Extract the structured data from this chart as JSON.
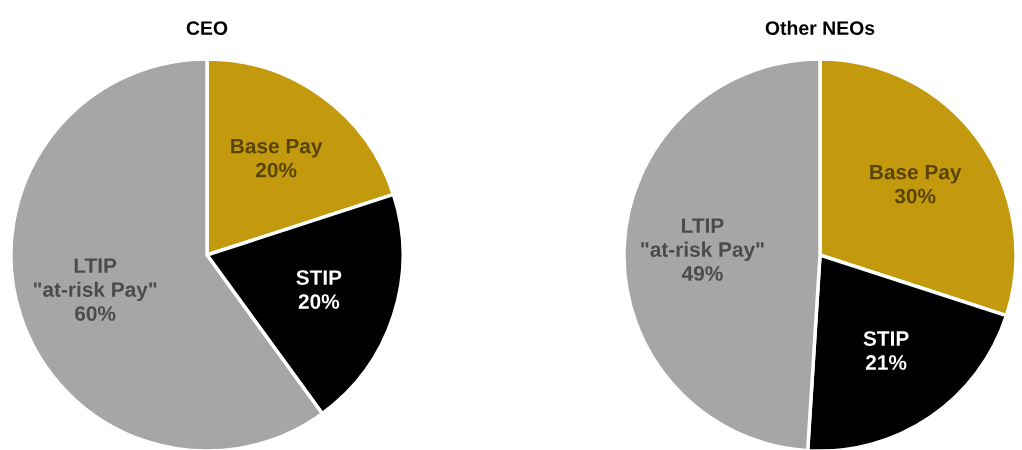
{
  "chart_data": [
    {
      "type": "pie",
      "title": "CEO",
      "categories": [
        "Base Pay",
        "STIP",
        "LTIP\n\"at-risk Pay\""
      ],
      "values": [
        20,
        20,
        60
      ],
      "value_labels": [
        "20%",
        "20%",
        "60%"
      ],
      "colors": [
        "#c39a0e",
        "#000000",
        "#a6a6a6"
      ]
    },
    {
      "type": "pie",
      "title": "Other NEOs",
      "categories": [
        "Base Pay",
        "STIP",
        "LTIP\n\"at-risk Pay\""
      ],
      "values": [
        30,
        21,
        49
      ],
      "value_labels": [
        "30%",
        "21%",
        "49%"
      ],
      "colors": [
        "#c39a0e",
        "#000000",
        "#a6a6a6"
      ]
    }
  ]
}
